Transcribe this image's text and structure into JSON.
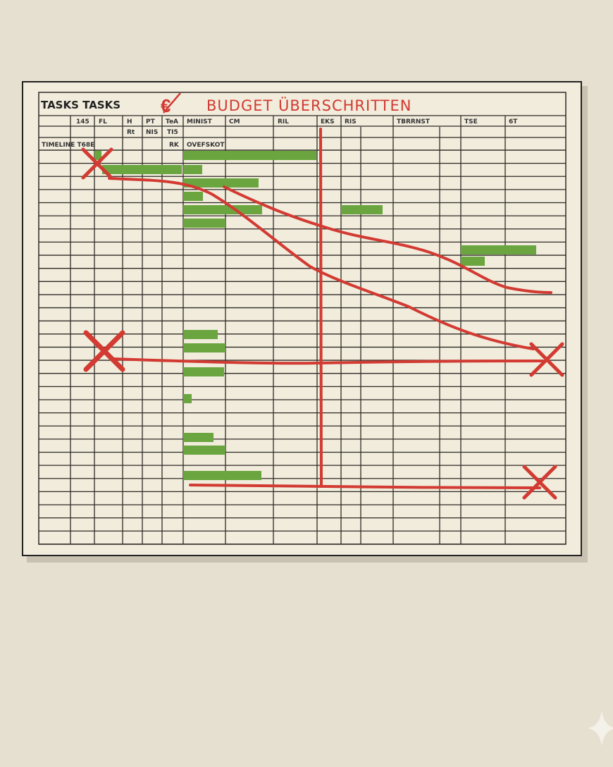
{
  "board": {
    "title": "TASKS TASKS",
    "currency_symbol": "€",
    "alert_title": "BUDGET ÜBERSCHRITTEN",
    "header_row1": [
      "145",
      "FL",
      "H",
      "PT",
      "TeA",
      "MINIST",
      "CM",
      "RIL",
      "EKS",
      "RIS",
      "TBRRNST",
      "TSE",
      "6T"
    ],
    "header_row2": [
      "Rt",
      "NIS",
      "TI5"
    ],
    "timeline_label": "TIMELINE T68E",
    "row3_labels": [
      "RK",
      "OVEFSKOT"
    ]
  },
  "colors": {
    "background": "#e6e0d0",
    "paper": "#f1ecdc",
    "grid": "#2d2a26",
    "bar": "#6aa53f",
    "marker": "#d23a32"
  },
  "icons": [
    "euro-crossed-icon",
    "x-mark-icon"
  ]
}
